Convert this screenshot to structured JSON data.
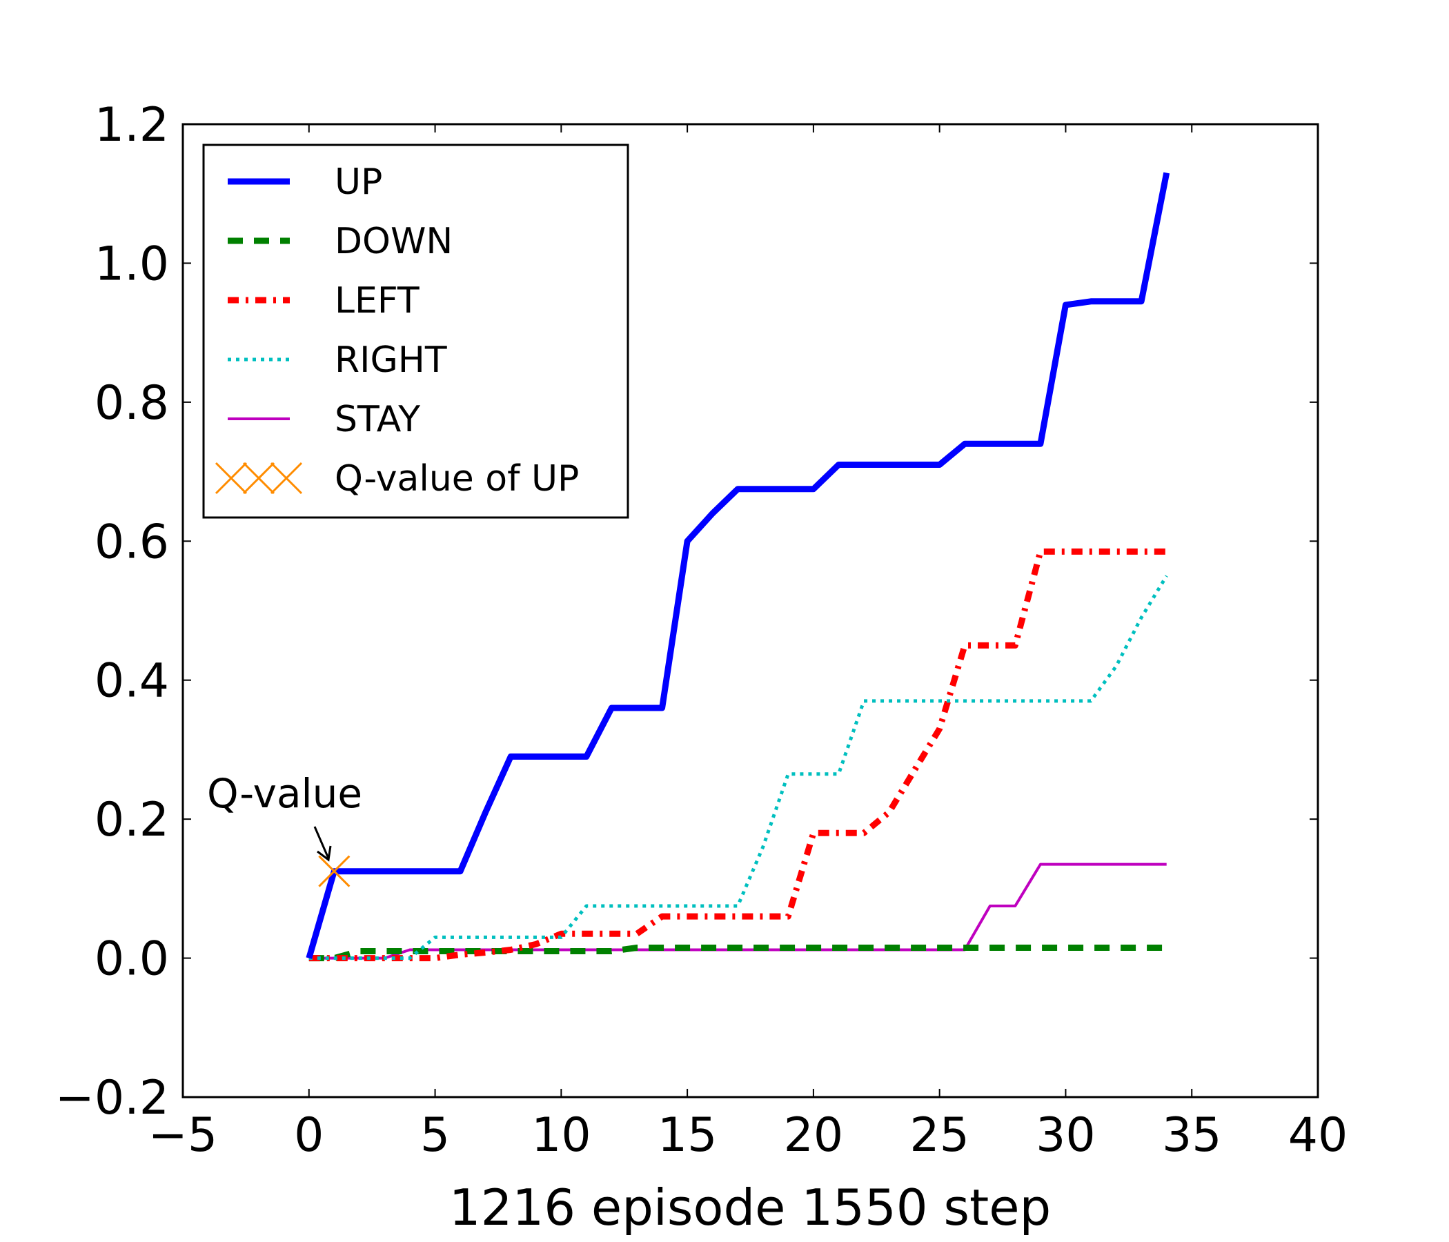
{
  "chart_data": {
    "type": "line",
    "title": "",
    "xlabel": "1216 episode 1550 step",
    "ylabel": "",
    "xlim": [
      -5,
      40
    ],
    "ylim": [
      -0.2,
      1.2
    ],
    "xticks": [
      -5,
      0,
      5,
      10,
      15,
      20,
      25,
      30,
      35,
      40
    ],
    "yticks": [
      -0.2,
      0.0,
      0.2,
      0.4,
      0.6,
      0.8,
      1.0,
      1.2
    ],
    "xtick_labels": [
      "−5",
      "0",
      "5",
      "10",
      "15",
      "20",
      "25",
      "30",
      "35",
      "40"
    ],
    "ytick_labels": [
      "−0.2",
      "0.0",
      "0.2",
      "0.4",
      "0.6",
      "0.8",
      "1.0",
      "1.2"
    ],
    "grid": false,
    "legend_position": "top-left",
    "x": [
      0,
      1,
      2,
      3,
      4,
      5,
      6,
      7,
      8,
      9,
      10,
      11,
      12,
      13,
      14,
      15,
      16,
      17,
      18,
      19,
      20,
      21,
      22,
      23,
      24,
      25,
      26,
      27,
      28,
      29,
      30,
      31,
      32,
      33,
      34
    ],
    "series": [
      {
        "name": "UP",
        "color": "#0000ff",
        "style": "solid-thick",
        "values": [
          0.0,
          0.125,
          0.125,
          0.125,
          0.125,
          0.125,
          0.125,
          0.21,
          0.29,
          0.29,
          0.29,
          0.29,
          0.36,
          0.36,
          0.36,
          0.6,
          0.64,
          0.675,
          0.675,
          0.675,
          0.675,
          0.71,
          0.71,
          0.71,
          0.71,
          0.71,
          0.74,
          0.74,
          0.74,
          0.74,
          0.94,
          0.945,
          0.945,
          0.945,
          1.13
        ]
      },
      {
        "name": "DOWN",
        "color": "#008000",
        "style": "dashed",
        "values": [
          0.0,
          0.0,
          0.01,
          0.01,
          0.01,
          0.01,
          0.01,
          0.01,
          0.01,
          0.01,
          0.01,
          0.01,
          0.01,
          0.015,
          0.015,
          0.015,
          0.015,
          0.015,
          0.015,
          0.015,
          0.015,
          0.015,
          0.015,
          0.015,
          0.015,
          0.015,
          0.015,
          0.015,
          0.015,
          0.015,
          0.015,
          0.015,
          0.015,
          0.015,
          0.015
        ]
      },
      {
        "name": "LEFT",
        "color": "#ff0000",
        "style": "dash-dot",
        "values": [
          0.0,
          0.0,
          0.0,
          0.0,
          0.0,
          0.0,
          0.005,
          0.008,
          0.012,
          0.02,
          0.035,
          0.035,
          0.035,
          0.035,
          0.06,
          0.06,
          0.06,
          0.06,
          0.06,
          0.06,
          0.18,
          0.18,
          0.18,
          0.21,
          0.27,
          0.33,
          0.45,
          0.45,
          0.45,
          0.585,
          0.585,
          0.585,
          0.585,
          0.585,
          0.585
        ]
      },
      {
        "name": "RIGHT",
        "color": "#00bfbf",
        "style": "dotted",
        "values": [
          0.0,
          0.0,
          0.0,
          0.0,
          0.0,
          0.03,
          0.03,
          0.03,
          0.03,
          0.03,
          0.03,
          0.075,
          0.075,
          0.075,
          0.075,
          0.075,
          0.075,
          0.075,
          0.16,
          0.265,
          0.265,
          0.265,
          0.37,
          0.37,
          0.37,
          0.37,
          0.37,
          0.37,
          0.37,
          0.37,
          0.37,
          0.37,
          0.42,
          0.49,
          0.55
        ]
      },
      {
        "name": "STAY",
        "color": "#bf00bf",
        "style": "solid-thin",
        "values": [
          0.0,
          0.0,
          0.0,
          0.0,
          0.012,
          0.012,
          0.012,
          0.012,
          0.012,
          0.012,
          0.012,
          0.012,
          0.012,
          0.012,
          0.012,
          0.012,
          0.012,
          0.012,
          0.012,
          0.012,
          0.012,
          0.012,
          0.012,
          0.012,
          0.012,
          0.012,
          0.012,
          0.075,
          0.075,
          0.135,
          0.135,
          0.135,
          0.135,
          0.135,
          0.135
        ]
      }
    ],
    "markers": [
      {
        "name": "Q-value of UP",
        "color": "#ff8c00",
        "symbol": "x",
        "x": 1,
        "y": 0.125
      }
    ],
    "annotations": [
      {
        "text": "Q-value",
        "x": 1,
        "y": 0.125
      }
    ]
  }
}
